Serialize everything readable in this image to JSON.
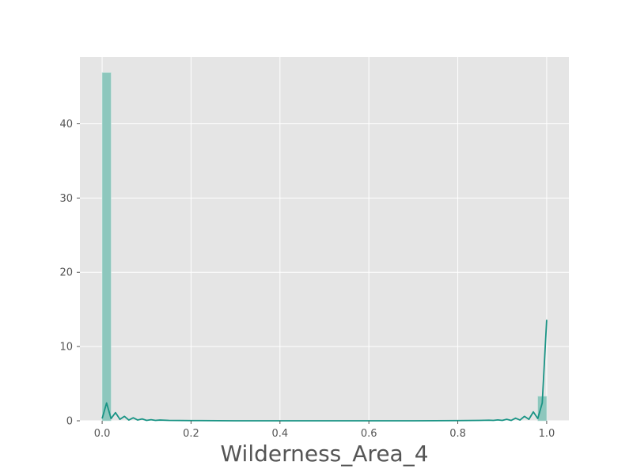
{
  "chart_data": {
    "type": "bar",
    "xlabel": "Wilderness_Area_4",
    "ylabel": "",
    "xlim": [
      -0.05,
      1.05
    ],
    "ylim": [
      0,
      49
    ],
    "x_ticks": [
      {
        "value": 0.0,
        "label": "0.0"
      },
      {
        "value": 0.2,
        "label": "0.2"
      },
      {
        "value": 0.4,
        "label": "0.4"
      },
      {
        "value": 0.6,
        "label": "0.6"
      },
      {
        "value": 0.8,
        "label": "0.8"
      },
      {
        "value": 1.0,
        "label": "1.0"
      }
    ],
    "y_ticks": [
      {
        "value": 0,
        "label": "0"
      },
      {
        "value": 10,
        "label": "10"
      },
      {
        "value": 20,
        "label": "20"
      },
      {
        "value": 30,
        "label": "30"
      },
      {
        "value": 40,
        "label": "40"
      }
    ],
    "grid": true,
    "histogram": {
      "color": "#8dc7bd",
      "bins": [
        {
          "x0": 0.0,
          "x1": 0.02,
          "height": 46.9
        },
        {
          "x0": 0.98,
          "x1": 1.0,
          "height": 3.3
        }
      ]
    },
    "kde": {
      "color": "#1a9485",
      "x": [
        0.0,
        0.01,
        0.02,
        0.03,
        0.04,
        0.05,
        0.06,
        0.07,
        0.08,
        0.09,
        0.1,
        0.11,
        0.12,
        0.13,
        0.15,
        0.2,
        0.3,
        0.4,
        0.5,
        0.6,
        0.7,
        0.8,
        0.85,
        0.87,
        0.88,
        0.89,
        0.9,
        0.91,
        0.92,
        0.93,
        0.94,
        0.95,
        0.96,
        0.97,
        0.98,
        0.99,
        1.0
      ],
      "y": [
        0.3,
        2.4,
        0.3,
        1.1,
        0.2,
        0.6,
        0.1,
        0.4,
        0.1,
        0.25,
        0.05,
        0.15,
        0.05,
        0.1,
        0.05,
        0.03,
        0.0,
        0.0,
        0.0,
        0.0,
        0.0,
        0.03,
        0.05,
        0.08,
        0.05,
        0.12,
        0.05,
        0.2,
        0.05,
        0.35,
        0.1,
        0.6,
        0.2,
        1.2,
        0.3,
        2.4,
        13.6
      ]
    },
    "background": "#e5e5e5",
    "grid_color": "#ffffff",
    "text_color": "#555555"
  }
}
